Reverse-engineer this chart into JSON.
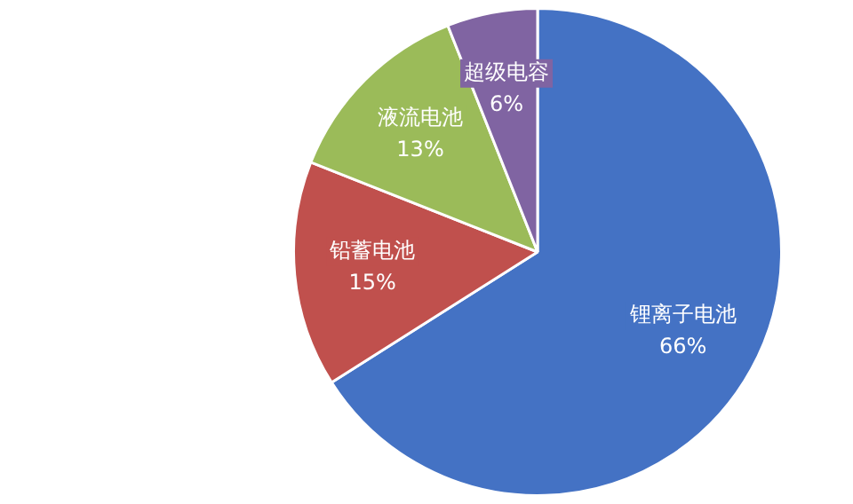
{
  "chart_data": {
    "type": "pie",
    "categories": [
      "锂离子电池",
      "铅蓄电池",
      "液流电池",
      "超级电容"
    ],
    "values": [
      66,
      15,
      13,
      6
    ],
    "value_labels": [
      "66%",
      "15%",
      "13%",
      "6%"
    ],
    "colors": [
      "#4472c4",
      "#c0504d",
      "#9bbb59",
      "#8064a2"
    ],
    "legend": false
  }
}
